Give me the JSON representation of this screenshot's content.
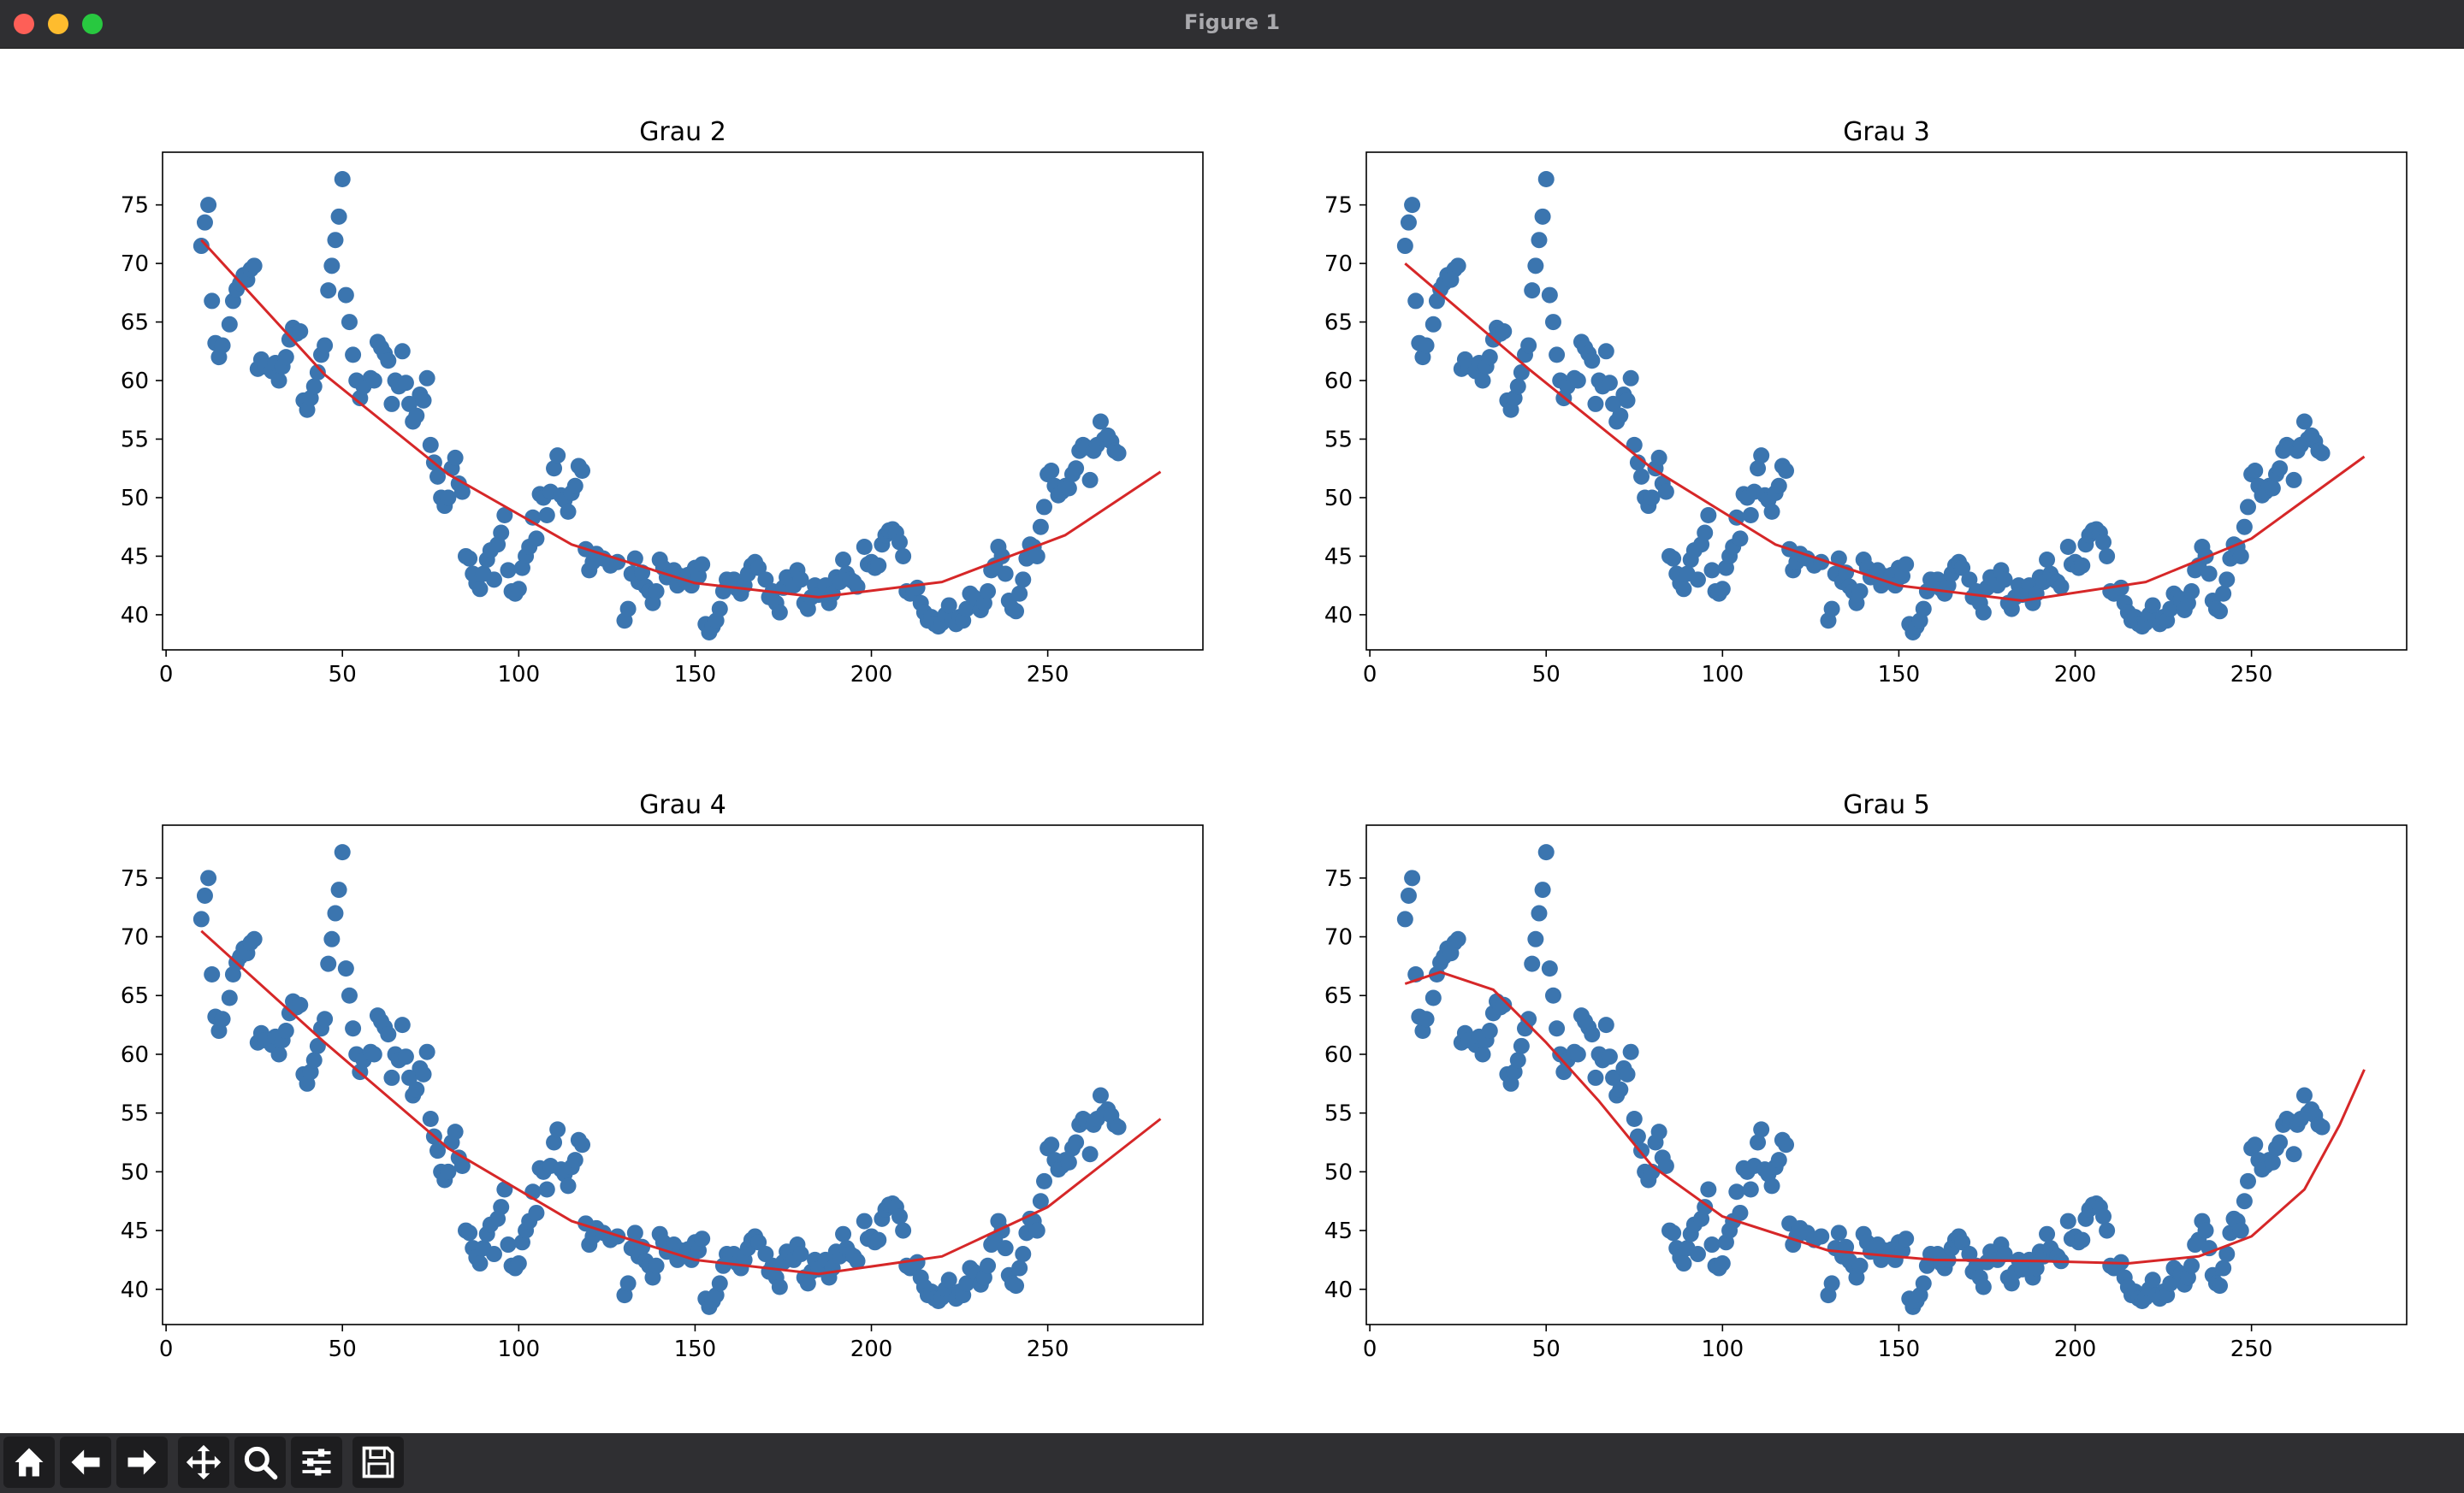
{
  "window": {
    "title": "Figure 1"
  },
  "colors": {
    "points": "#3b75af",
    "fit": "#d62728",
    "chrome": "#2f2f32"
  },
  "toolbar": [
    {
      "name": "home-icon",
      "label": "Home"
    },
    {
      "name": "back-arrow-icon",
      "label": "Back"
    },
    {
      "name": "forward-arrow-icon",
      "label": "Forward"
    },
    {
      "name": "pan-move-icon",
      "label": "Pan"
    },
    {
      "name": "zoom-magnifier-icon",
      "label": "Zoom"
    },
    {
      "name": "subplots-sliders-icon",
      "label": "Configure subplots"
    },
    {
      "name": "save-floppy-icon",
      "label": "Save"
    }
  ],
  "chart_data": [
    {
      "type": "scatter",
      "title": "Grau 2",
      "degree": 2,
      "xlim": [
        -1,
        294
      ],
      "ylim": [
        37,
        79.5
      ],
      "xticks": [
        0,
        50,
        100,
        150,
        200,
        250
      ],
      "yticks": [
        40,
        45,
        50,
        55,
        60,
        65,
        70,
        75
      ],
      "fit_x": [
        10,
        45,
        80,
        115,
        150,
        185,
        220,
        255,
        282
      ],
      "fit_y": [
        72,
        60.5,
        52,
        46,
        42.7,
        41.5,
        42.8,
        46.8,
        52.2
      ]
    },
    {
      "type": "scatter",
      "title": "Grau 3",
      "degree": 3,
      "xlim": [
        -1,
        294
      ],
      "ylim": [
        37,
        79.5
      ],
      "xticks": [
        0,
        50,
        100,
        150,
        200,
        250
      ],
      "yticks": [
        40,
        45,
        50,
        55,
        60,
        65,
        70,
        75
      ],
      "fit_x": [
        10,
        45,
        80,
        115,
        150,
        185,
        220,
        250,
        282
      ],
      "fit_y": [
        70,
        61,
        52.5,
        46,
        42.5,
        41.2,
        42.8,
        46.5,
        53.5
      ]
    },
    {
      "type": "scatter",
      "title": "Grau 4",
      "degree": 4,
      "xlim": [
        -1,
        294
      ],
      "ylim": [
        37,
        79.5
      ],
      "xticks": [
        0,
        50,
        100,
        150,
        200,
        250
      ],
      "yticks": [
        40,
        45,
        50,
        55,
        60,
        65,
        70,
        75
      ],
      "fit_x": [
        10,
        45,
        80,
        115,
        150,
        185,
        220,
        250,
        282
      ],
      "fit_y": [
        70.5,
        61,
        52,
        45.8,
        42.5,
        41.3,
        42.8,
        47,
        54.5
      ]
    },
    {
      "type": "scatter",
      "title": "Grau 5",
      "degree": 5,
      "xlim": [
        -1,
        294
      ],
      "ylim": [
        37,
        79.5
      ],
      "xticks": [
        0,
        50,
        100,
        150,
        200,
        250
      ],
      "yticks": [
        40,
        45,
        50,
        55,
        60,
        65,
        70,
        75
      ],
      "fit_x": [
        10,
        20,
        35,
        50,
        65,
        80,
        100,
        130,
        160,
        190,
        215,
        235,
        250,
        265,
        275,
        282
      ],
      "fit_y": [
        66,
        67,
        65.5,
        61,
        56,
        50.5,
        46.2,
        43.3,
        42.5,
        42.4,
        42.2,
        42.8,
        44.5,
        48.5,
        54,
        58.7
      ]
    }
  ],
  "scatter_points": [
    [
      10,
      71.5
    ],
    [
      11,
      73.5
    ],
    [
      12,
      75
    ],
    [
      13,
      66.8
    ],
    [
      14,
      63.2
    ],
    [
      15,
      62
    ],
    [
      16,
      63
    ],
    [
      18,
      64.8
    ],
    [
      19,
      66.8
    ],
    [
      20,
      67.8
    ],
    [
      21,
      68.3
    ],
    [
      22,
      69
    ],
    [
      23,
      68.6
    ],
    [
      24,
      69.5
    ],
    [
      25,
      69.8
    ],
    [
      26,
      61
    ],
    [
      27,
      61.8
    ],
    [
      28,
      61.2
    ],
    [
      30,
      60.8
    ],
    [
      31,
      61.5
    ],
    [
      32,
      60
    ],
    [
      33,
      61.2
    ],
    [
      34,
      62
    ],
    [
      35,
      63.5
    ],
    [
      36,
      64.5
    ],
    [
      37,
      64
    ],
    [
      38,
      64.2
    ],
    [
      39,
      58.3
    ],
    [
      40,
      57.5
    ],
    [
      41,
      58.5
    ],
    [
      42,
      59.5
    ],
    [
      43,
      60.7
    ],
    [
      44,
      62.2
    ],
    [
      45,
      63
    ],
    [
      46,
      67.7
    ],
    [
      47,
      69.8
    ],
    [
      48,
      72
    ],
    [
      49,
      74
    ],
    [
      50,
      77.2
    ],
    [
      51,
      67.3
    ],
    [
      52,
      65
    ],
    [
      53,
      62.2
    ],
    [
      54,
      60
    ],
    [
      55,
      58.5
    ],
    [
      56,
      59.5
    ],
    [
      58,
      60.2
    ],
    [
      59,
      60
    ],
    [
      60,
      63.3
    ],
    [
      61,
      62.8
    ],
    [
      62,
      62.3
    ],
    [
      63,
      61.7
    ],
    [
      64,
      58
    ],
    [
      65,
      60
    ],
    [
      66,
      59.5
    ],
    [
      67,
      62.5
    ],
    [
      68,
      59.8
    ],
    [
      69,
      58
    ],
    [
      70,
      56.5
    ],
    [
      71,
      57
    ],
    [
      72,
      58.8
    ],
    [
      73,
      58.3
    ],
    [
      74,
      60.2
    ],
    [
      75,
      54.5
    ],
    [
      76,
      53
    ],
    [
      77,
      51.8
    ],
    [
      78,
      50
    ],
    [
      79,
      49.3
    ],
    [
      80,
      50
    ],
    [
      81,
      52.5
    ],
    [
      82,
      53.4
    ],
    [
      83,
      51.2
    ],
    [
      84,
      50.5
    ],
    [
      85,
      45
    ],
    [
      86,
      44.8
    ],
    [
      87,
      43.5
    ],
    [
      88,
      42.7
    ],
    [
      89,
      42.2
    ],
    [
      90,
      43.5
    ],
    [
      91,
      44.7
    ],
    [
      92,
      45.5
    ],
    [
      93,
      43
    ],
    [
      94,
      46
    ],
    [
      95,
      47
    ],
    [
      96,
      48.5
    ],
    [
      97,
      43.8
    ],
    [
      98,
      42
    ],
    [
      99,
      41.8
    ],
    [
      100,
      42.2
    ],
    [
      101,
      44
    ],
    [
      102,
      45
    ],
    [
      103,
      45.8
    ],
    [
      104,
      48.3
    ],
    [
      105,
      46.5
    ],
    [
      106,
      50.3
    ],
    [
      107,
      50
    ],
    [
      108,
      48.5
    ],
    [
      109,
      50.5
    ],
    [
      110,
      52.5
    ],
    [
      111,
      53.6
    ],
    [
      112,
      50.2
    ],
    [
      113,
      49.8
    ],
    [
      114,
      48.8
    ],
    [
      115,
      50.4
    ],
    [
      116,
      51
    ],
    [
      117,
      52.7
    ],
    [
      118,
      52.3
    ],
    [
      119,
      45.6
    ],
    [
      120,
      43.8
    ],
    [
      121,
      44.5
    ],
    [
      122,
      45.2
    ],
    [
      124,
      44.8
    ],
    [
      126,
      44.2
    ],
    [
      128,
      44.5
    ],
    [
      130,
      39.5
    ],
    [
      131,
      40.5
    ],
    [
      132,
      43.5
    ],
    [
      133,
      44.8
    ],
    [
      134,
      42.8
    ],
    [
      135,
      43.6
    ],
    [
      136,
      42.4
    ],
    [
      137,
      42
    ],
    [
      138,
      41
    ],
    [
      139,
      42
    ],
    [
      140,
      44.7
    ],
    [
      141,
      44
    ],
    [
      142,
      43.2
    ],
    [
      143,
      43.5
    ],
    [
      144,
      43.8
    ],
    [
      145,
      42.5
    ],
    [
      146,
      43.3
    ],
    [
      147,
      43
    ],
    [
      148,
      43.4
    ],
    [
      149,
      42.5
    ],
    [
      150,
      44
    ],
    [
      151,
      43.3
    ],
    [
      152,
      44.3
    ],
    [
      153,
      39.2
    ],
    [
      154,
      38.5
    ],
    [
      155,
      39
    ],
    [
      156,
      39.5
    ],
    [
      157,
      40.5
    ],
    [
      158,
      42
    ],
    [
      159,
      43
    ],
    [
      160,
      42.8
    ],
    [
      161,
      43
    ],
    [
      162,
      42.2
    ],
    [
      163,
      41.8
    ],
    [
      164,
      42.5
    ],
    [
      165,
      43.5
    ],
    [
      166,
      44.2
    ],
    [
      167,
      44.5
    ],
    [
      168,
      44
    ],
    [
      170,
      43
    ],
    [
      171,
      41.5
    ],
    [
      172,
      42
    ],
    [
      173,
      41
    ],
    [
      174,
      40.2
    ],
    [
      175,
      42.3
    ],
    [
      176,
      43.2
    ],
    [
      178,
      42.5
    ],
    [
      179,
      43.8
    ],
    [
      180,
      43
    ],
    [
      181,
      41
    ],
    [
      182,
      40.5
    ],
    [
      183,
      41.5
    ],
    [
      184,
      42.5
    ],
    [
      185,
      41.7
    ],
    [
      187,
      42.5
    ],
    [
      188,
      41
    ],
    [
      189,
      41.8
    ],
    [
      190,
      43.2
    ],
    [
      191,
      42.8
    ],
    [
      192,
      44.7
    ],
    [
      193,
      43.5
    ],
    [
      194,
      43
    ],
    [
      195,
      42.8
    ],
    [
      196,
      42.4
    ],
    [
      198,
      45.8
    ],
    [
      199,
      44.3
    ],
    [
      200,
      44.5
    ],
    [
      201,
      44
    ],
    [
      202,
      44.2
    ],
    [
      203,
      46
    ],
    [
      204,
      46.8
    ],
    [
      205,
      47.2
    ],
    [
      206,
      47.3
    ],
    [
      207,
      47
    ],
    [
      208,
      46.2
    ],
    [
      209,
      45
    ],
    [
      210,
      42
    ],
    [
      211,
      41.8
    ],
    [
      212,
      42
    ],
    [
      213,
      42.3
    ],
    [
      214,
      41
    ],
    [
      215,
      40.2
    ],
    [
      216,
      39.5
    ],
    [
      217,
      39.8
    ],
    [
      218,
      39.2
    ],
    [
      219,
      39
    ],
    [
      220,
      39.3
    ],
    [
      221,
      40
    ],
    [
      222,
      40.8
    ],
    [
      223,
      39.5
    ],
    [
      224,
      39.2
    ],
    [
      225,
      39.8
    ],
    [
      226,
      39.5
    ],
    [
      227,
      40.5
    ],
    [
      228,
      41.8
    ],
    [
      229,
      41.5
    ],
    [
      230,
      41.3
    ],
    [
      231,
      40.4
    ],
    [
      232,
      41
    ],
    [
      233,
      42
    ],
    [
      234,
      43.8
    ],
    [
      235,
      44.2
    ],
    [
      236,
      45.8
    ],
    [
      237,
      45
    ],
    [
      238,
      43.5
    ],
    [
      239,
      41.2
    ],
    [
      240,
      40.5
    ],
    [
      241,
      40.3
    ],
    [
      242,
      41.8
    ],
    [
      243,
      43
    ],
    [
      244,
      44.8
    ],
    [
      245,
      46
    ],
    [
      246,
      45.8
    ],
    [
      247,
      45
    ],
    [
      248,
      47.5
    ],
    [
      249,
      49.2
    ],
    [
      250,
      52
    ],
    [
      251,
      52.3
    ],
    [
      252,
      51
    ],
    [
      253,
      50.2
    ],
    [
      254,
      50.5
    ],
    [
      255,
      51
    ],
    [
      256,
      50.8
    ],
    [
      257,
      52
    ],
    [
      258,
      52.5
    ],
    [
      259,
      54
    ],
    [
      260,
      54.5
    ],
    [
      261,
      54.3
    ],
    [
      262,
      51.5
    ],
    [
      263,
      54
    ],
    [
      264,
      54.5
    ],
    [
      265,
      56.5
    ],
    [
      266,
      55
    ],
    [
      267,
      55.3
    ],
    [
      268,
      54.8
    ],
    [
      269,
      54
    ],
    [
      270,
      53.8
    ]
  ]
}
